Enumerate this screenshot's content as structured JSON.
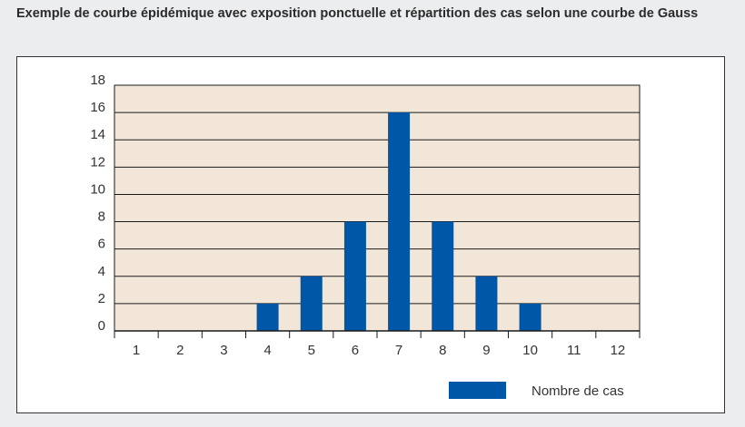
{
  "title": "Exemple de courbe épidémique avec exposition ponctuelle et répartition des cas selon une courbe de Gauss",
  "colors": {
    "bar": "#0057a8",
    "plot_background": "#f2e6d8",
    "grid": "#1a1a1a",
    "frame_border": "#333333",
    "page_background": "#ecedef"
  },
  "chart_data": {
    "type": "bar",
    "title": "Exemple de courbe épidémique avec exposition ponctuelle et répartition des cas selon une courbe de Gauss",
    "xlabel": "",
    "ylabel": "",
    "categories": [
      "1",
      "2",
      "3",
      "4",
      "5",
      "6",
      "7",
      "8",
      "9",
      "10",
      "11",
      "12"
    ],
    "series": [
      {
        "name": "Nombre de cas",
        "values": [
          0,
          0,
          0,
          2,
          4,
          8,
          16,
          8,
          4,
          2,
          0,
          0
        ]
      }
    ],
    "ylim": [
      0,
      18
    ],
    "yticks": [
      "0",
      "2",
      "4",
      "6",
      "8",
      "10",
      "12",
      "14",
      "16",
      "18"
    ],
    "grid": true,
    "legend": {
      "position": "bottom-right",
      "entries": [
        "Nombre de cas"
      ]
    }
  }
}
